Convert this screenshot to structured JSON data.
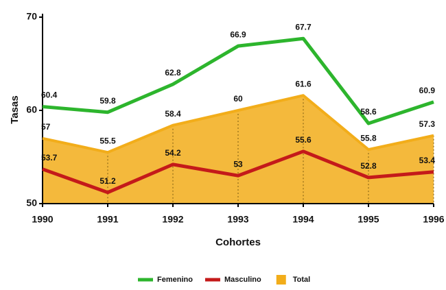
{
  "chart_data": {
    "type": "line",
    "x": [
      1990,
      1991,
      1992,
      1993,
      1994,
      1995,
      1996
    ],
    "xlim": [
      1990,
      1996
    ],
    "xticks": [
      1990,
      1991,
      1992,
      1993,
      1994,
      1995,
      1996
    ],
    "ylim": [
      50,
      70
    ],
    "yticks": [
      50,
      60,
      70
    ],
    "xlabel": "Cohortes",
    "ylabel": "Tasas",
    "series": [
      {
        "name": "Femenino",
        "color": "#2db52d",
        "values": [
          60.4,
          59.8,
          62.8,
          66.9,
          67.7,
          58.6,
          60.9
        ]
      },
      {
        "name": "Masculino",
        "color": "#c41a1a",
        "values": [
          53.7,
          51.2,
          54.2,
          53,
          55.6,
          52.8,
          53.4
        ]
      },
      {
        "name": "Total",
        "type": "area",
        "color": "#f2ad1a",
        "values": [
          57,
          55.5,
          58.4,
          60,
          61.6,
          55.8,
          57.3
        ]
      }
    ],
    "legend": "bottom"
  }
}
